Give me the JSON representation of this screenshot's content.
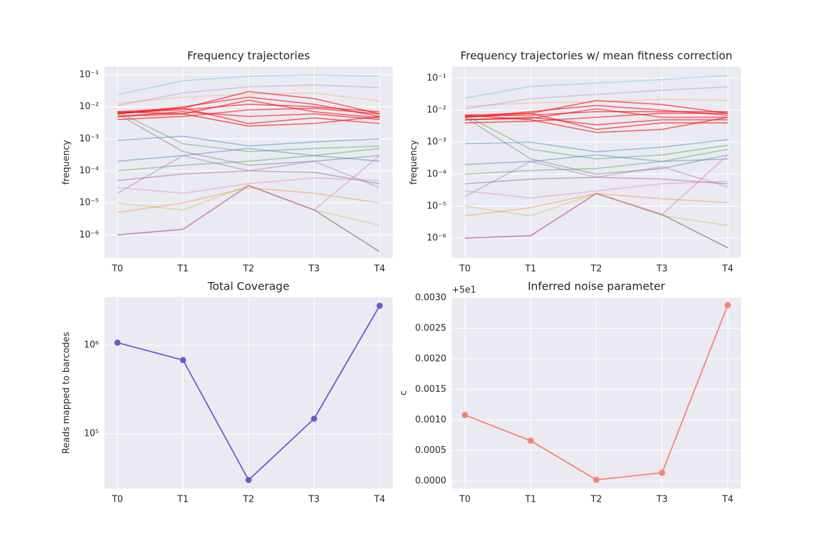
{
  "chart_data": [
    {
      "type": "line",
      "title": "Frequency trajectories",
      "ylabel": "frequency",
      "yscale": "log",
      "grid": true,
      "categories": [
        "T0",
        "T1",
        "T2",
        "T3",
        "T4"
      ],
      "ylim": [
        1.9e-07,
        0.18
      ],
      "yticks": [
        {
          "value": 1e-06,
          "label": "10⁻⁶"
        },
        {
          "value": 1e-05,
          "label": "10⁻⁵"
        },
        {
          "value": 0.0001,
          "label": "10⁻⁴"
        },
        {
          "value": 0.001,
          "label": "10⁻³"
        },
        {
          "value": 0.01,
          "label": "10⁻²"
        },
        {
          "value": 0.1,
          "label": "10⁻¹"
        }
      ],
      "series": [
        {
          "color": "#17becf",
          "opacity": 0.3,
          "values": [
            0.024,
            0.065,
            0.09,
            0.1,
            0.09
          ]
        },
        {
          "color": "#9467bd",
          "opacity": 0.3,
          "values": [
            0.011,
            0.027,
            0.042,
            0.048,
            0.04
          ]
        },
        {
          "color": "#ff7f0e",
          "opacity": 0.25,
          "values": [
            0.013,
            0.02,
            0.025,
            0.027,
            0.015
          ]
        },
        {
          "color": "#7f7f7f",
          "opacity": 0.5,
          "values": [
            0.006,
            0.0004,
            0.00015,
            0.0002,
            0.0003
          ]
        },
        {
          "color": "#2ca02c",
          "opacity": 0.4,
          "values": [
            0.007,
            0.0007,
            0.0004,
            0.0005,
            0.0006
          ]
        },
        {
          "color": "#1f77b4",
          "opacity": 0.4,
          "values": [
            0.0002,
            0.0003,
            0.0005,
            0.0003,
            0.0002
          ]
        },
        {
          "color": "#8c564b",
          "opacity": 0.4,
          "values": [
            5e-05,
            8e-05,
            0.0001,
            9e-05,
            4e-05
          ]
        },
        {
          "color": "#e377c2",
          "opacity": 0.4,
          "values": [
            3e-05,
            2e-05,
            4e-05,
            6e-05,
            5e-05
          ]
        },
        {
          "color": "#bcbd22",
          "opacity": 0.4,
          "values": [
            1e-05,
            6e-06,
            3.5e-05,
            6e-06,
            2e-06
          ]
        },
        {
          "color": "#8c564b",
          "opacity": 0.6,
          "values": [
            1e-06,
            1.5e-06,
            3.5e-05,
            6e-06,
            3e-07
          ]
        },
        {
          "color": "#e377c2",
          "opacity": 0.5,
          "values": [
            1e-06,
            1.5e-06,
            3.5e-05,
            6e-06,
            0.0003
          ]
        },
        {
          "color": "#1f77b4",
          "opacity": 0.4,
          "values": [
            0.0009,
            0.0012,
            0.0006,
            0.0008,
            0.001
          ]
        },
        {
          "color": "#2ca02c",
          "opacity": 0.4,
          "values": [
            0.0001,
            0.00015,
            0.0002,
            0.0003,
            0.0005
          ]
        },
        {
          "color": "#ff7f0e",
          "opacity": 0.4,
          "values": [
            5e-06,
            1e-05,
            3e-05,
            2e-05,
            1e-05
          ]
        },
        {
          "color": "#9467bd",
          "opacity": 0.4,
          "values": [
            2e-05,
            0.0003,
            0.0001,
            0.0002,
            3e-05
          ]
        },
        {
          "color": "#ff0000",
          "opacity": 0.6,
          "values": [
            0.007,
            0.009,
            0.03,
            0.018,
            0.006
          ]
        },
        {
          "color": "#ff0000",
          "opacity": 0.6,
          "values": [
            0.006,
            0.01,
            0.02,
            0.012,
            0.005
          ]
        },
        {
          "color": "#ff0000",
          "opacity": 0.6,
          "values": [
            0.0065,
            0.008,
            0.012,
            0.01,
            0.007
          ]
        },
        {
          "color": "#ff0000",
          "opacity": 0.6,
          "values": [
            0.005,
            0.007,
            0.005,
            0.006,
            0.004
          ]
        },
        {
          "color": "#ff0000",
          "opacity": 0.6,
          "values": [
            0.007,
            0.006,
            0.0025,
            0.003,
            0.005
          ]
        },
        {
          "color": "#ff0000",
          "opacity": 0.6,
          "values": [
            0.004,
            0.005,
            0.008,
            0.009,
            0.006
          ]
        },
        {
          "color": "#ff0000",
          "opacity": 0.6,
          "values": [
            0.006,
            0.009,
            0.003,
            0.0045,
            0.003
          ]
        },
        {
          "color": "#ff0000",
          "opacity": 0.6,
          "values": [
            0.005,
            0.006,
            0.016,
            0.007,
            0.0045
          ]
        }
      ]
    },
    {
      "type": "line",
      "title": "Frequency trajectories w/ mean fitness correction",
      "ylabel": "frequency",
      "yscale": "log",
      "grid": true,
      "categories": [
        "T0",
        "T1",
        "T2",
        "T3",
        "T4"
      ],
      "ylim": [
        2.4e-07,
        0.23
      ],
      "yticks": [
        {
          "value": 1e-06,
          "label": "10⁻⁶"
        },
        {
          "value": 1e-05,
          "label": "10⁻⁵"
        },
        {
          "value": 0.0001,
          "label": "10⁻⁴"
        },
        {
          "value": 0.001,
          "label": "10⁻³"
        },
        {
          "value": 0.01,
          "label": "10⁻²"
        },
        {
          "value": 0.1,
          "label": "10⁻¹"
        }
      ],
      "series": [
        {
          "color": "#17becf",
          "opacity": 0.3,
          "values": [
            0.024,
            0.055,
            0.07,
            0.09,
            0.12
          ]
        },
        {
          "color": "#9467bd",
          "opacity": 0.3,
          "values": [
            0.011,
            0.023,
            0.031,
            0.042,
            0.053
          ]
        },
        {
          "color": "#ff7f0e",
          "opacity": 0.25,
          "values": [
            0.013,
            0.017,
            0.018,
            0.022,
            0.02
          ]
        },
        {
          "color": "#7f7f7f",
          "opacity": 0.5,
          "values": [
            0.006,
            0.0003,
            0.0001,
            0.00015,
            0.0004
          ]
        },
        {
          "color": "#2ca02c",
          "opacity": 0.4,
          "values": [
            0.007,
            0.0006,
            0.0003,
            0.0004,
            0.0008
          ]
        },
        {
          "color": "#1f77b4",
          "opacity": 0.4,
          "values": [
            0.0002,
            0.00025,
            0.0004,
            0.00025,
            0.0003
          ]
        },
        {
          "color": "#8c564b",
          "opacity": 0.4,
          "values": [
            5e-05,
            7e-05,
            8e-05,
            7e-05,
            5e-05
          ]
        },
        {
          "color": "#e377c2",
          "opacity": 0.4,
          "values": [
            3e-05,
            1.8e-05,
            3e-05,
            5e-05,
            6e-05
          ]
        },
        {
          "color": "#bcbd22",
          "opacity": 0.4,
          "values": [
            1e-05,
            5e-06,
            2.5e-05,
            5e-06,
            2.5e-06
          ]
        },
        {
          "color": "#8c564b",
          "opacity": 0.6,
          "values": [
            1e-06,
            1.2e-06,
            2.5e-05,
            5.5e-06,
            5e-07
          ]
        },
        {
          "color": "#e377c2",
          "opacity": 0.5,
          "values": [
            1e-06,
            1.2e-06,
            2.5e-05,
            5.5e-06,
            0.0004
          ]
        },
        {
          "color": "#1f77b4",
          "opacity": 0.4,
          "values": [
            0.0009,
            0.001,
            0.0005,
            0.0007,
            0.0012
          ]
        },
        {
          "color": "#2ca02c",
          "opacity": 0.4,
          "values": [
            0.0001,
            0.00013,
            0.00015,
            0.00025,
            0.0006
          ]
        },
        {
          "color": "#ff7f0e",
          "opacity": 0.4,
          "values": [
            5e-06,
            9e-06,
            2.5e-05,
            1.7e-05,
            1.3e-05
          ]
        },
        {
          "color": "#9467bd",
          "opacity": 0.4,
          "values": [
            2e-05,
            0.00025,
            8e-05,
            0.00017,
            4e-05
          ]
        },
        {
          "color": "#ff0000",
          "opacity": 0.6,
          "values": [
            0.007,
            0.008,
            0.02,
            0.015,
            0.008
          ]
        },
        {
          "color": "#ff0000",
          "opacity": 0.6,
          "values": [
            0.006,
            0.009,
            0.014,
            0.01,
            0.007
          ]
        },
        {
          "color": "#ff0000",
          "opacity": 0.6,
          "values": [
            0.0065,
            0.007,
            0.009,
            0.009,
            0.009
          ]
        },
        {
          "color": "#ff0000",
          "opacity": 0.6,
          "values": [
            0.005,
            0.006,
            0.0035,
            0.005,
            0.005
          ]
        },
        {
          "color": "#ff0000",
          "opacity": 0.6,
          "values": [
            0.007,
            0.005,
            0.002,
            0.0025,
            0.006
          ]
        },
        {
          "color": "#ff0000",
          "opacity": 0.6,
          "values": [
            0.004,
            0.0045,
            0.006,
            0.008,
            0.008
          ]
        },
        {
          "color": "#ff0000",
          "opacity": 0.6,
          "values": [
            0.006,
            0.008,
            0.0025,
            0.004,
            0.004
          ]
        },
        {
          "color": "#ff0000",
          "opacity": 0.6,
          "values": [
            0.005,
            0.0055,
            0.011,
            0.006,
            0.006
          ]
        }
      ]
    },
    {
      "type": "line",
      "title": "Total Coverage",
      "ylabel": "Reads mapped to barcodes",
      "yscale": "log",
      "grid": true,
      "markers": true,
      "categories": [
        "T0",
        "T1",
        "T2",
        "T3",
        "T4"
      ],
      "ylim": [
        24000,
        3500000
      ],
      "yticks": [
        {
          "value": 100000,
          "label": "10⁵"
        },
        {
          "value": 1000000,
          "label": "10⁶"
        }
      ],
      "series": [
        {
          "color": "#6a5acd",
          "opacity": 1,
          "values": [
            1070000,
            680000,
            30000,
            148000,
            2800000
          ]
        }
      ]
    },
    {
      "type": "line",
      "title": "Inferred noise parameter",
      "ylabel": "c",
      "yscale": "linear",
      "grid": true,
      "markers": true,
      "offset_text": "+5e1",
      "categories": [
        "T0",
        "T1",
        "T2",
        "T3",
        "T4"
      ],
      "ylim": [
        -0.000124,
        0.00301
      ],
      "yticks": [
        {
          "value": 0,
          "label": "0.0000"
        },
        {
          "value": 0.0005,
          "label": "0.0005"
        },
        {
          "value": 0.001,
          "label": "0.0010"
        },
        {
          "value": 0.0015,
          "label": "0.0015"
        },
        {
          "value": 0.002,
          "label": "0.0020"
        },
        {
          "value": 0.0025,
          "label": "0.0025"
        },
        {
          "value": 0.003,
          "label": "0.0030"
        }
      ],
      "series": [
        {
          "color": "#fa8072",
          "opacity": 1,
          "values": [
            0.00108,
            0.00066,
            2e-05,
            0.000135,
            0.00288
          ]
        }
      ]
    }
  ]
}
